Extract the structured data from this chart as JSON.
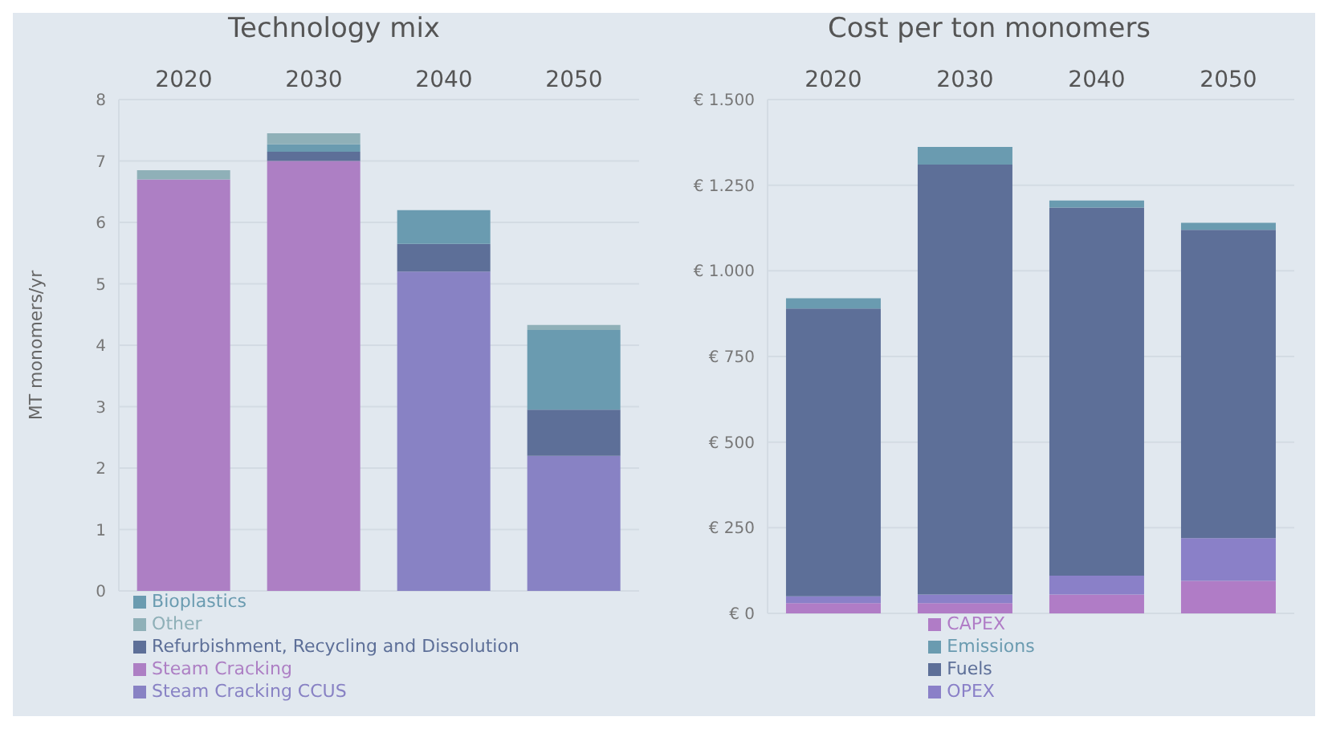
{
  "chart_data": [
    {
      "type": "bar",
      "title": "Technology mix",
      "ylabel": "MT monomers/yr",
      "categories": [
        "2020",
        "2030",
        "2040",
        "2050"
      ],
      "stacked": true,
      "ylim": [
        0,
        8
      ],
      "yticks": [
        0,
        1,
        2,
        3,
        4,
        5,
        6,
        7,
        8
      ],
      "grid": "y",
      "legend": "bottom",
      "series": [
        {
          "name": "Steam Cracking",
          "color": "#ad7fc4",
          "values": [
            6.7,
            7.0,
            0,
            0
          ]
        },
        {
          "name": "Steam Cracking CCUS",
          "color": "#8882c4",
          "values": [
            0,
            0,
            5.2,
            2.2
          ]
        },
        {
          "name": "Refurbishment, Recycling and Dissolution",
          "color": "#5d6f98",
          "values": [
            0,
            0.15,
            0.45,
            0.75
          ]
        },
        {
          "name": "Bioplastics",
          "color": "#6a9bb0",
          "values": [
            0,
            0.12,
            0.55,
            1.3
          ]
        },
        {
          "name": "Other",
          "color": "#8fb0b8",
          "values": [
            0.15,
            0.18,
            0,
            0.08
          ]
        }
      ]
    },
    {
      "type": "bar",
      "title": "Cost per ton monomers",
      "categories": [
        "2020",
        "2030",
        "2040",
        "2050"
      ],
      "stacked": true,
      "ylim": [
        0,
        1500
      ],
      "yticks": [
        {
          "value": 0,
          "label": "€ 0"
        },
        {
          "value": 250,
          "label": "€ 250"
        },
        {
          "value": 500,
          "label": "€ 500"
        },
        {
          "value": 750,
          "label": "€ 750"
        },
        {
          "value": 1000,
          "label": "€ 1.000"
        },
        {
          "value": 1250,
          "label": "€ 1.250"
        },
        {
          "value": 1500,
          "label": "€ 1.500"
        }
      ],
      "grid": "y",
      "legend": "bottom",
      "series": [
        {
          "name": "CAPEX",
          "color": "#b07cc6",
          "values": [
            30,
            30,
            55,
            95
          ]
        },
        {
          "name": "OPEX",
          "color": "#8a80c8",
          "values": [
            20,
            25,
            55,
            125
          ]
        },
        {
          "name": "Fuels",
          "color": "#5d6f98",
          "values": [
            840,
            1255,
            1075,
            900
          ]
        },
        {
          "name": "Emissions",
          "color": "#6a9bb0",
          "values": [
            30,
            52,
            20,
            20
          ]
        }
      ]
    }
  ]
}
